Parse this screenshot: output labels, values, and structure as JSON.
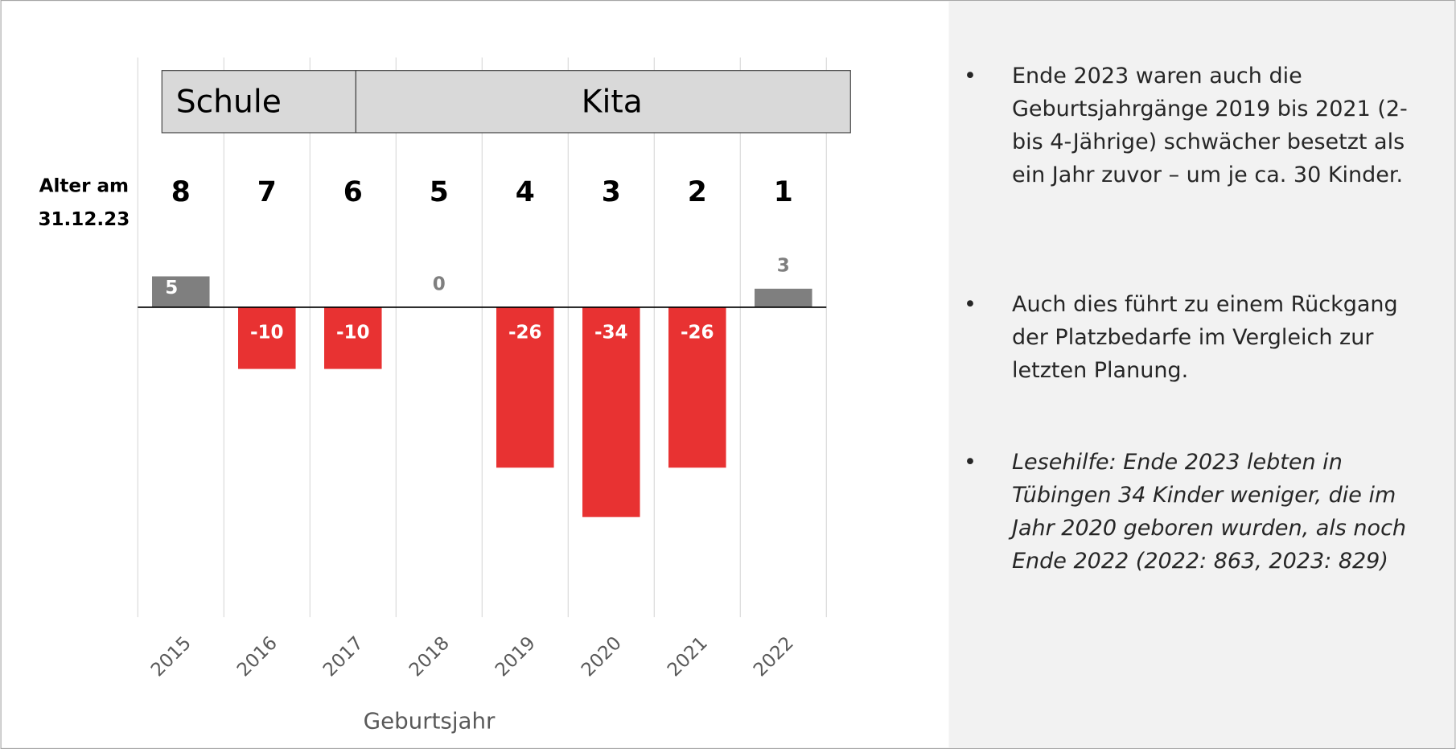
{
  "chart_data": {
    "type": "bar",
    "categories": [
      "2015",
      "2016",
      "2017",
      "2018",
      "2019",
      "2020",
      "2021",
      "2022"
    ],
    "values": [
      5,
      -10,
      -10,
      0,
      -26,
      -34,
      -26,
      3
    ],
    "colors": {
      "positive": "#7f7f7f",
      "negative": "#e83232"
    },
    "x_label": "Geburtsjahr",
    "age_label": [
      "Alter am",
      "31.12.23"
    ],
    "ages": [
      8,
      7,
      6,
      5,
      4,
      3,
      2,
      1
    ],
    "bands": [
      {
        "label": "Schule"
      },
      {
        "label": "Kita"
      }
    ]
  },
  "notes": [
    "Ende 2023 waren auch die Geburtsjahrgänge 2019 bis 2021 (2- bis 4-Jährige) schwächer besetzt als ein Jahr zuvor – um je ca. 30 Kinder.",
    "Auch dies führt zu einem Rückgang der Platzbedarfe im Vergleich zur letzten Planung.",
    "Lesehilfe: Ende 2023 lebten in Tübingen 34 Kinder weniger, die im Jahr 2020 geboren wurden, als noch Ende 2022 (2022: 863, 2023: 829)"
  ]
}
